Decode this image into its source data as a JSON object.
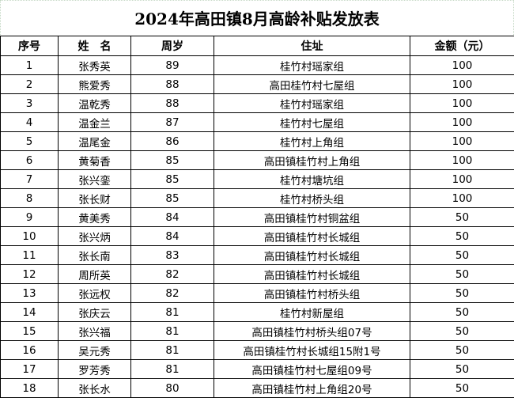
{
  "title": "2024年高田镇8月高龄补贴发放表",
  "columns": [
    "序号",
    "姓　名",
    "周岁",
    "住址",
    "金额（元）"
  ],
  "rows": [
    [
      "1",
      "张秀英",
      "89",
      "桂竹村瑶家组",
      "100"
    ],
    [
      "2",
      "熊爱秀",
      "88",
      "高田桂竹村七屋组",
      "100"
    ],
    [
      "3",
      "温乾秀",
      "88",
      "桂竹村瑶家组",
      "100"
    ],
    [
      "4",
      "温金兰",
      "87",
      "桂竹村七屋组",
      "100"
    ],
    [
      "5",
      "温尾金",
      "86",
      "桂竹村上角组",
      "100"
    ],
    [
      "6",
      "黄菊香",
      "85",
      "高田镇桂竹村上角组",
      "100"
    ],
    [
      "7",
      "张兴銮",
      "85",
      "桂竹村塘坑组",
      "100"
    ],
    [
      "8",
      "张长财",
      "85",
      "桂竹村桥头组",
      "100"
    ],
    [
      "9",
      "黄美秀",
      "84",
      "高田镇桂竹村铜盆组",
      "50"
    ],
    [
      "10",
      "张兴炳",
      "84",
      "高田镇桂竹村长城组",
      "50"
    ],
    [
      "11",
      "张长南",
      "83",
      "高田镇桂竹村长城组",
      "50"
    ],
    [
      "12",
      "周所英",
      "82",
      "高田镇桂竹村长城组",
      "50"
    ],
    [
      "13",
      "张远权",
      "82",
      "高田镇桂竹村桥头组",
      "50"
    ],
    [
      "14",
      "张庆云",
      "81",
      "桂竹村新屋组",
      "50"
    ],
    [
      "15",
      "张兴福",
      "81",
      "高田镇桂竹村桥头组07号",
      "50"
    ],
    [
      "16",
      "吴元秀",
      "81",
      "高田镇桂竹村长城组15附1号",
      "50"
    ],
    [
      "17",
      "罗芳秀",
      "81",
      "高田镇桂竹村七屋组09号",
      "50"
    ],
    [
      "18",
      "张长水",
      "80",
      "高田镇桂竹村上角组20号",
      "50"
    ]
  ]
}
